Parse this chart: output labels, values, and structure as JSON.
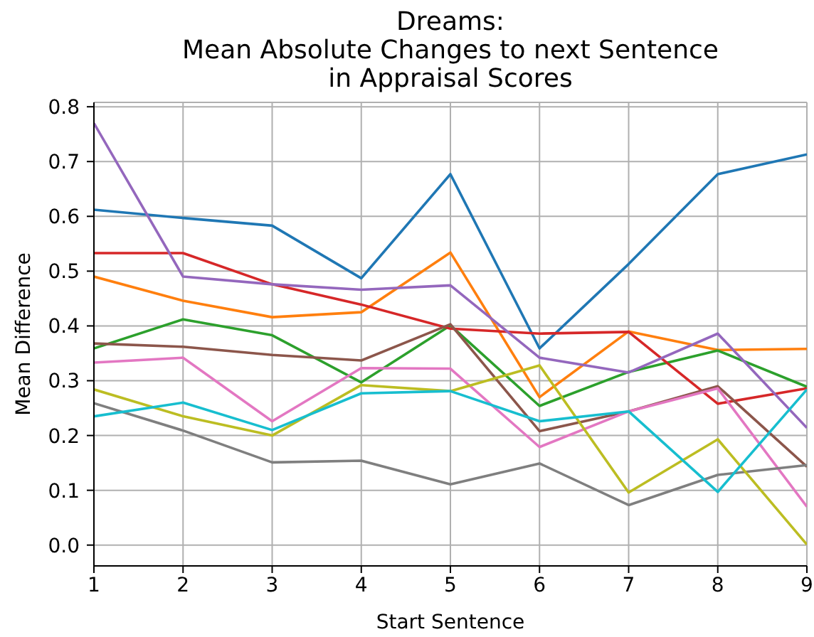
{
  "chart_data": {
    "type": "line",
    "title": "Dreams:\nMean Absolute Changes to next Sentence\nin Appraisal Scores",
    "xlabel": "Start Sentence",
    "ylabel": "Mean Difference",
    "x": [
      1,
      2,
      3,
      4,
      5,
      6,
      7,
      8,
      9
    ],
    "series": [
      {
        "color": "#1f77b4",
        "values": [
          0.612,
          0.597,
          0.583,
          0.487,
          0.677,
          0.359,
          0.513,
          0.677,
          0.713
        ]
      },
      {
        "color": "#ff7f0e",
        "values": [
          0.49,
          0.446,
          0.416,
          0.425,
          0.534,
          0.27,
          0.39,
          0.356,
          0.358
        ]
      },
      {
        "color": "#2ca02c",
        "values": [
          0.359,
          0.412,
          0.383,
          0.297,
          0.401,
          0.254,
          0.316,
          0.355,
          0.289
        ]
      },
      {
        "color": "#d62728",
        "values": [
          0.533,
          0.533,
          0.476,
          0.439,
          0.395,
          0.386,
          0.389,
          0.258,
          0.286
        ]
      },
      {
        "color": "#9467bd",
        "values": [
          0.77,
          0.49,
          0.476,
          0.466,
          0.474,
          0.342,
          0.315,
          0.386,
          0.214
        ]
      },
      {
        "color": "#8c564b",
        "values": [
          0.368,
          0.362,
          0.347,
          0.337,
          0.403,
          0.208,
          0.244,
          0.29,
          0.143
        ]
      },
      {
        "color": "#e377c2",
        "values": [
          0.333,
          0.342,
          0.226,
          0.323,
          0.322,
          0.179,
          0.244,
          0.286,
          0.07
        ]
      },
      {
        "color": "#7f7f7f",
        "values": [
          0.259,
          0.209,
          0.151,
          0.154,
          0.111,
          0.149,
          0.073,
          0.128,
          0.146
        ]
      },
      {
        "color": "#bcbd22",
        "values": [
          0.284,
          0.235,
          0.2,
          0.292,
          0.281,
          0.328,
          0.096,
          0.193,
          0.001
        ]
      },
      {
        "color": "#17becf",
        "values": [
          0.235,
          0.26,
          0.21,
          0.277,
          0.281,
          0.226,
          0.244,
          0.097,
          0.284
        ]
      }
    ],
    "xlim": [
      1,
      9
    ],
    "xticks": [
      1,
      2,
      3,
      4,
      5,
      6,
      7,
      8,
      9
    ],
    "ylim": [
      -0.038,
      0.808
    ],
    "yticks": [
      {
        "value": 0,
        "label": "0.0"
      },
      0.1,
      0.2,
      0.3,
      0.4,
      0.5,
      0.6,
      0.7,
      0.8
    ],
    "grid": true
  }
}
